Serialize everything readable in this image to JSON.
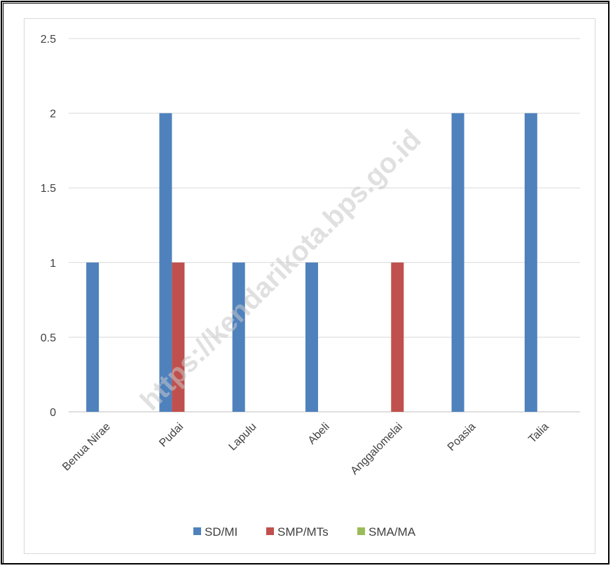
{
  "chart_data": {
    "type": "bar",
    "categories": [
      "Benua Nirae",
      "Pudai",
      "Lapulu",
      "Abeli",
      "Anggalomelai",
      "Poasia",
      "Talia"
    ],
    "series": [
      {
        "name": "SD/MI",
        "color": "#4F81BD",
        "values": [
          1,
          2,
          1,
          1,
          0,
          2,
          2
        ]
      },
      {
        "name": "SMP/MTs",
        "color": "#C0504D",
        "values": [
          0,
          1,
          0,
          0,
          1,
          0,
          0
        ]
      },
      {
        "name": "SMA/MA",
        "color": "#9BBB59",
        "values": [
          0,
          0,
          0,
          0,
          0,
          0,
          0
        ]
      }
    ],
    "y_ticks": [
      "0",
      "0.5",
      "1",
      "1.5",
      "2",
      "2.5"
    ],
    "ylim": [
      0,
      2.5
    ],
    "grid": true,
    "legend_position": "bottom",
    "title": "",
    "xlabel": "",
    "ylabel": ""
  },
  "watermark": "https://kendarikota.bps.go.id"
}
